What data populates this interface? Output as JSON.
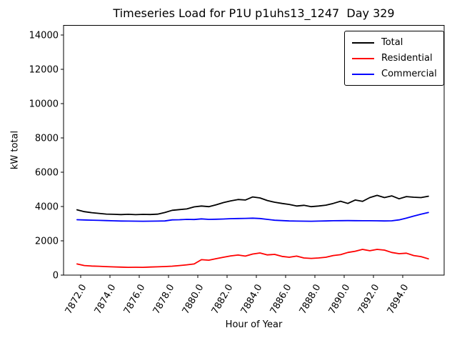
{
  "figure": {
    "title": "Timeseries Load for P1U p1uhs13_1247  Day 329",
    "xlabel": "Hour of Year",
    "ylabel": "kW total"
  },
  "legend": {
    "items": [
      {
        "label": "Total",
        "color": "#000000"
      },
      {
        "label": "Residential",
        "color": "#ff0000"
      },
      {
        "label": "Commercial",
        "color": "#0000ff"
      }
    ]
  },
  "chart_data": {
    "type": "line",
    "title": "Timeseries Load for P1U p1uhs13_1247  Day 329",
    "xlabel": "Hour of Year",
    "ylabel": "kW total",
    "grid": false,
    "legend_position": "upper right",
    "xlim": [
      7870.83,
      7896.83
    ],
    "ylim": [
      0,
      14562
    ],
    "yticks": [
      0,
      2000,
      4000,
      6000,
      8000,
      10000,
      12000,
      14000
    ],
    "ytick_labels": [
      "0",
      "2000",
      "4000",
      "6000",
      "8000",
      "10000",
      "12000",
      "14000"
    ],
    "xticks": [
      7872,
      7874,
      7876,
      7878,
      7880,
      7882,
      7884,
      7886,
      7888,
      7890,
      7892,
      7894
    ],
    "xtick_labels": [
      "7872.0",
      "7874.0",
      "7876.0",
      "7878.0",
      "7880.0",
      "7882.0",
      "7884.0",
      "7886.0",
      "7888.0",
      "7890.0",
      "7892.0",
      "7894.0"
    ],
    "x": [
      7871.75,
      7872.25,
      7872.75,
      7873.25,
      7873.75,
      7874.25,
      7874.75,
      7875.25,
      7875.75,
      7876.25,
      7876.75,
      7877.25,
      7877.75,
      7878.25,
      7878.75,
      7879.25,
      7879.75,
      7880.25,
      7880.75,
      7881.25,
      7881.75,
      7882.25,
      7882.75,
      7883.25,
      7883.75,
      7884.25,
      7884.75,
      7885.25,
      7885.75,
      7886.25,
      7886.75,
      7887.25,
      7887.75,
      7888.25,
      7888.75,
      7889.25,
      7889.75,
      7890.25,
      7890.75,
      7891.25,
      7891.75,
      7892.25,
      7892.75,
      7893.25,
      7893.75,
      7894.25,
      7894.75,
      7895.25,
      7895.75
    ],
    "series": [
      {
        "name": "Total",
        "color": "#000000",
        "values": [
          3810,
          3700,
          3640,
          3600,
          3560,
          3545,
          3530,
          3545,
          3525,
          3540,
          3535,
          3555,
          3650,
          3780,
          3820,
          3860,
          3980,
          4030,
          3990,
          4100,
          4230,
          4330,
          4410,
          4380,
          4560,
          4500,
          4350,
          4250,
          4180,
          4120,
          4030,
          4070,
          3990,
          4030,
          4080,
          4180,
          4310,
          4180,
          4380,
          4300,
          4520,
          4650,
          4520,
          4620,
          4450,
          4580,
          4540,
          4520,
          4600
        ]
      },
      {
        "name": "Residential",
        "color": "#ff0000",
        "values": [
          650,
          560,
          530,
          515,
          495,
          480,
          465,
          455,
          460,
          455,
          470,
          485,
          500,
          520,
          560,
          600,
          650,
          900,
          870,
          960,
          1040,
          1120,
          1170,
          1110,
          1230,
          1290,
          1180,
          1210,
          1090,
          1040,
          1110,
          1000,
          975,
          1000,
          1040,
          1140,
          1190,
          1320,
          1390,
          1500,
          1420,
          1500,
          1460,
          1320,
          1250,
          1280,
          1140,
          1080,
          950
        ]
      },
      {
        "name": "Commercial",
        "color": "#0000ff",
        "values": [
          3230,
          3215,
          3205,
          3190,
          3180,
          3165,
          3155,
          3150,
          3145,
          3140,
          3145,
          3150,
          3160,
          3220,
          3230,
          3250,
          3240,
          3280,
          3250,
          3260,
          3270,
          3290,
          3300,
          3310,
          3320,
          3300,
          3250,
          3200,
          3180,
          3160,
          3150,
          3145,
          3140,
          3150,
          3160,
          3170,
          3175,
          3180,
          3175,
          3170,
          3170,
          3165,
          3160,
          3165,
          3220,
          3320,
          3440,
          3550,
          3650
        ]
      }
    ]
  }
}
